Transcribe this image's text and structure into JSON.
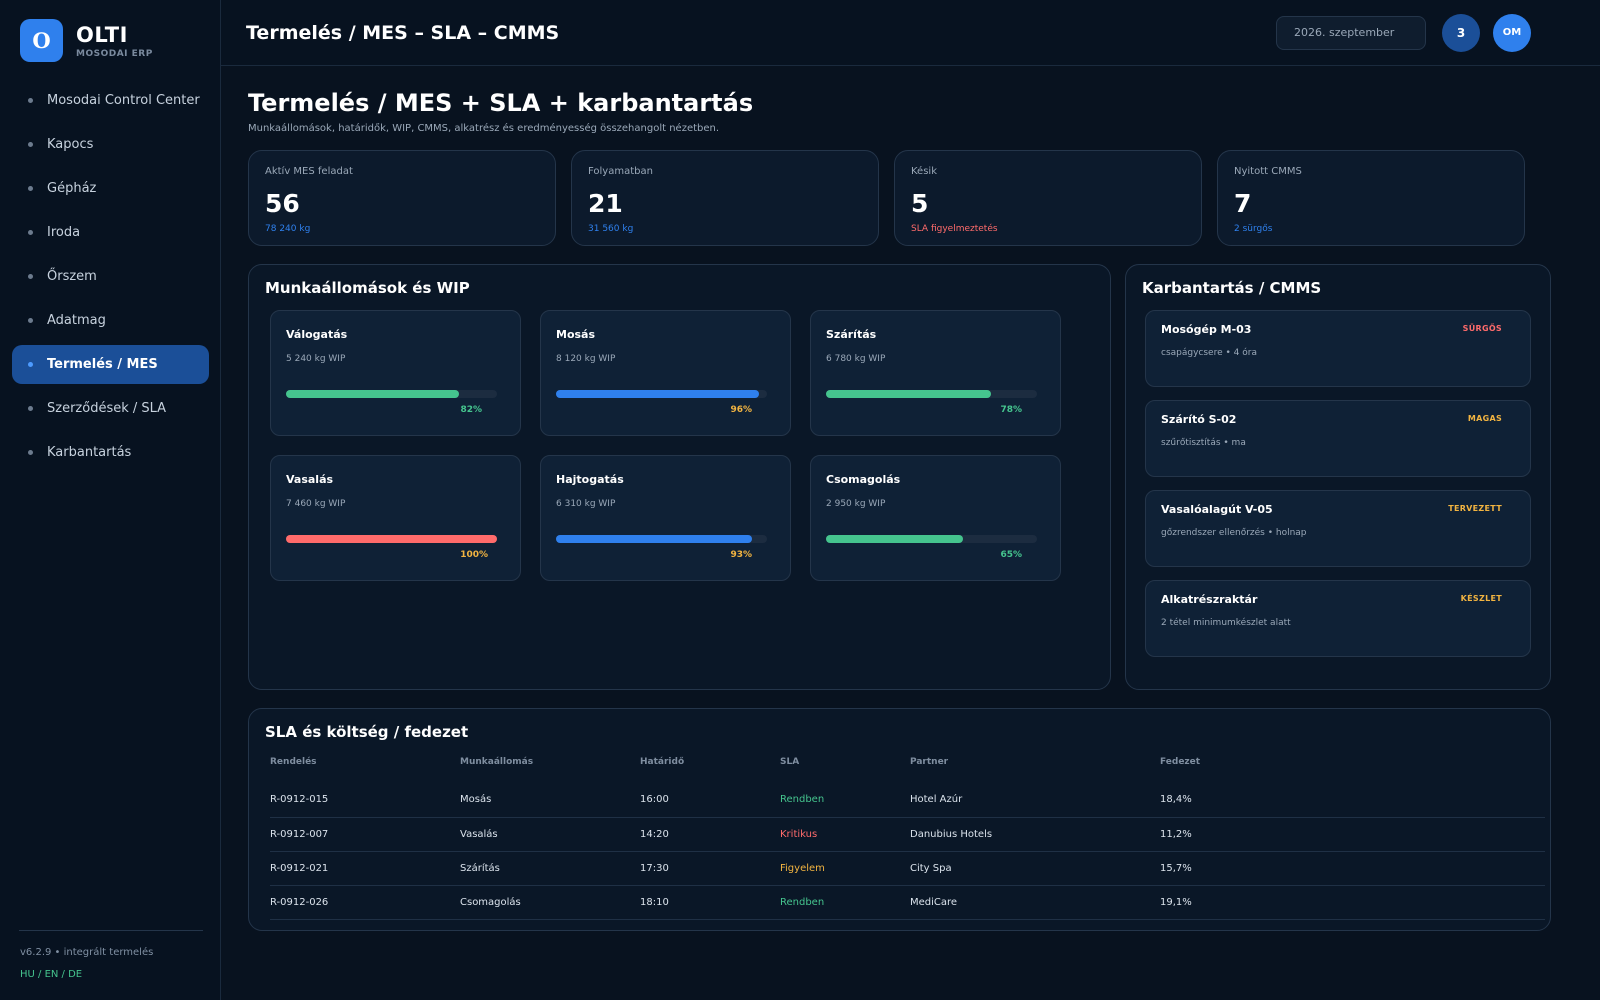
{
  "brand": {
    "logo_letter": "O",
    "name": "OLTI",
    "sub": "MOSODAI ERP"
  },
  "nav": [
    {
      "label": "Mosodai Control Center",
      "active": false
    },
    {
      "label": "Kapocs",
      "active": false
    },
    {
      "label": "Gépház",
      "active": false
    },
    {
      "label": "Iroda",
      "active": false
    },
    {
      "label": "Őrszem",
      "active": false
    },
    {
      "label": "Adatmag",
      "active": false
    },
    {
      "label": "Termelés / MES",
      "active": true
    },
    {
      "label": "Szerződések / SLA",
      "active": false
    },
    {
      "label": "Karbantartás",
      "active": false
    }
  ],
  "footer": {
    "version": "v6.2.9 • integrált termelés",
    "languages": "HU / EN / DE"
  },
  "topbar": {
    "title": "Termelés / MES – SLA – CMMS",
    "date": "2026. szeptember",
    "notifications": "3",
    "avatar": "OM"
  },
  "page": {
    "title": "Termelés / MES + SLA + karbantartás",
    "subtitle": "Munkaállomások, határidők, WIP, CMMS, alkatrész és eredményesség összehangolt nézetben."
  },
  "kpis": [
    {
      "label": "Aktív MES feladat",
      "value": "56",
      "sub": "78 240 kg",
      "color": "#2f80ed"
    },
    {
      "label": "Folyamatban",
      "value": "21",
      "sub": "31 560 kg",
      "color": "#2f80ed"
    },
    {
      "label": "Késik",
      "value": "5",
      "sub": "SLA figyelmeztetés",
      "color": "#ff6b6b"
    },
    {
      "label": "Nyitott CMMS",
      "value": "7",
      "sub": "2 sürgős",
      "color": "#2f80ed"
    }
  ],
  "workstations": {
    "title": "Munkaállomások és WIP",
    "items": [
      {
        "name": "Válogatás",
        "wip": "5 240 kg WIP",
        "progress": 82,
        "pct_label": "82%",
        "bar_color": "#45c48e",
        "pct_color": "#45c48e"
      },
      {
        "name": "Mosás",
        "wip": "8 120 kg WIP",
        "progress": 96,
        "pct_label": "96%",
        "bar_color": "#2f80ed",
        "pct_color": "#f2b441"
      },
      {
        "name": "Szárítás",
        "wip": "6 780 kg WIP",
        "progress": 78,
        "pct_label": "78%",
        "bar_color": "#45c48e",
        "pct_color": "#45c48e"
      },
      {
        "name": "Vasalás",
        "wip": "7 460 kg WIP",
        "progress": 100,
        "pct_label": "100%",
        "bar_color": "#ff6b6b",
        "pct_color": "#f2b441"
      },
      {
        "name": "Hajtogatás",
        "wip": "6 310 kg WIP",
        "progress": 93,
        "pct_label": "93%",
        "bar_color": "#2f80ed",
        "pct_color": "#f2b441"
      },
      {
        "name": "Csomagolás",
        "wip": "2 950 kg WIP",
        "progress": 65,
        "pct_label": "65%",
        "bar_color": "#45c48e",
        "pct_color": "#45c48e"
      }
    ]
  },
  "cmms": {
    "title": "Karbantartás / CMMS",
    "items": [
      {
        "name": "Mosógép M-03",
        "tag": "SÜRGŐS",
        "tag_color": "#ff6b6b",
        "desc": "csapágycsere • 4 óra"
      },
      {
        "name": "Szárító S-02",
        "tag": "MAGAS",
        "tag_color": "#f2b441",
        "desc": "szűrőtisztítás • ma"
      },
      {
        "name": "Vasalóalagút V-05",
        "tag": "TERVEZETT",
        "tag_color": "#f2b441",
        "desc": "gőzrendszer ellenőrzés • holnap"
      },
      {
        "name": "Alkatrészraktár",
        "tag": "KÉSZLET",
        "tag_color": "#f2b441",
        "desc": "2 tétel minimumkészlet alatt"
      }
    ]
  },
  "sla": {
    "title": "SLA és költség / fedezet",
    "headers": [
      "Rendelés",
      "Munkaállomás",
      "Határidő",
      "SLA",
      "Partner",
      "Fedezet"
    ],
    "rows": [
      {
        "order": "R-0912-015",
        "station": "Mosás",
        "deadline": "16:00",
        "sla": "Rendben",
        "sla_color": "#45c48e",
        "partner": "Hotel Azúr",
        "margin": "18,4%"
      },
      {
        "order": "R-0912-007",
        "station": "Vasalás",
        "deadline": "14:20",
        "sla": "Kritikus",
        "sla_color": "#ff6b6b",
        "partner": "Danubius Hotels",
        "margin": "11,2%"
      },
      {
        "order": "R-0912-021",
        "station": "Szárítás",
        "deadline": "17:30",
        "sla": "Figyelem",
        "sla_color": "#f2b441",
        "partner": "City Spa",
        "margin": "15,7%"
      },
      {
        "order": "R-0912-026",
        "station": "Csomagolás",
        "deadline": "18:10",
        "sla": "Rendben",
        "sla_color": "#45c48e",
        "partner": "MediCare",
        "margin": "19,1%"
      }
    ]
  }
}
